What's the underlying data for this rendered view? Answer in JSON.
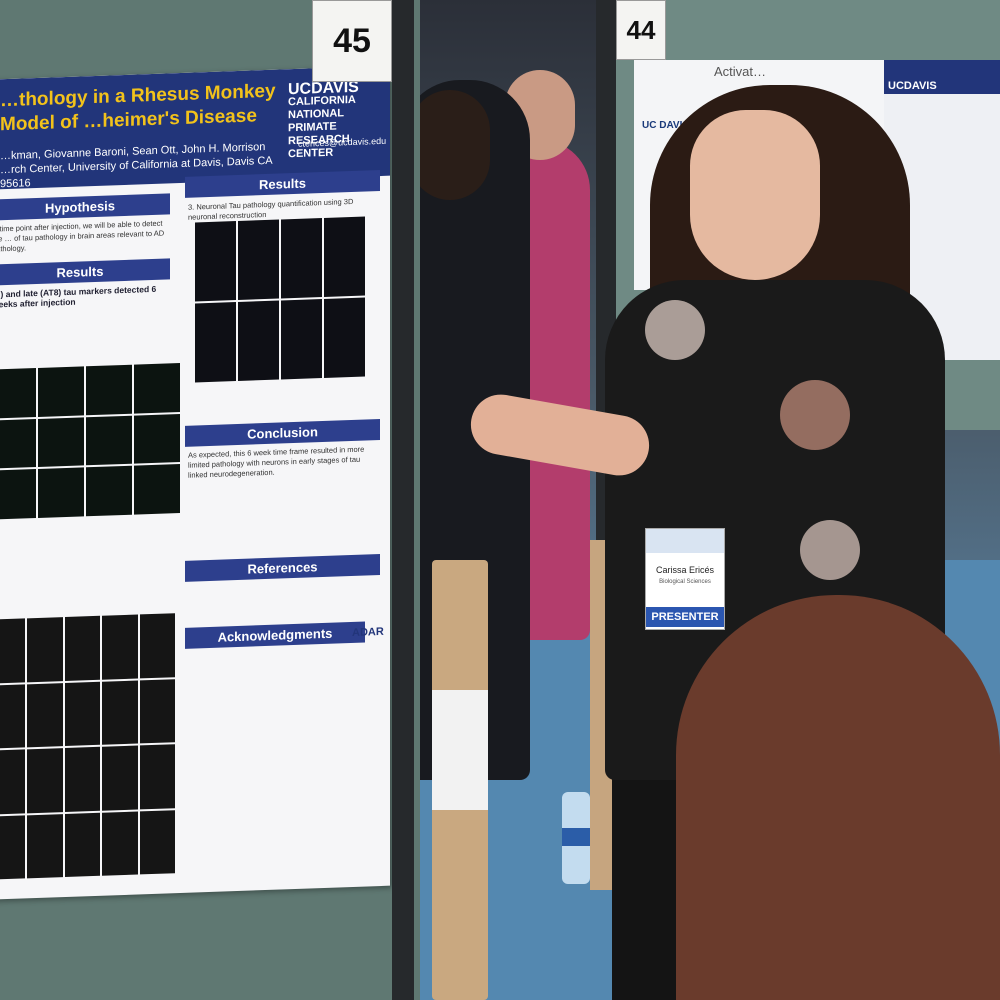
{
  "scene": {
    "description_tags": [
      "poster-session",
      "presenter",
      "scientific-poster"
    ],
    "colors": {
      "poster_navy": "#22357a",
      "poster_gold": "#f2c21b",
      "badge_blue": "#2b56b0"
    }
  },
  "board_numbers": {
    "left": "45",
    "right": "44"
  },
  "main_poster": {
    "title": "…thology in a Rhesus Monkey Model of …heimer's Disease",
    "logo_line1": "UCDAVIS",
    "logo_line2": "CALIFORNIA NATIONAL PRIMATE RESEARCH CENTER",
    "email": "cterices@ucdavis.edu",
    "authors": "…kman, Giovanne Baroni, Sean Ott, John H. Morrison",
    "affiliation": "…rch Center, University of California at Davis, Davis CA 95616",
    "sections": {
      "hypothesis": "Hypothesis",
      "results_left": "Results",
      "results_right": "Results",
      "conclusion": "Conclusion",
      "references": "References",
      "acknowledgements": "Acknowledgments"
    },
    "hypothesis_text": "…time point after injection, we will be able to detect the … of tau pathology in brain areas relevant to AD pathology.",
    "results_left_text": "…) and late (AT8) tau markers detected 6 weeks after injection",
    "results_right_text": "3. Neuronal Tau pathology quantification using 3D neuronal reconstruction",
    "conclusion_text": "As expected, this 6 week time frame resulted in more limited pathology with neurons in early stages of tau linked neurodegeneration.",
    "adar_logo": "ADAR"
  },
  "right_poster": {
    "logo": "UC DAVIS HEALTH",
    "title_fragment": "Activat…"
  },
  "far_right_poster": {
    "logo": "UCDAVIS"
  },
  "badge": {
    "name": "Carissa Ericés",
    "department": "Biological Sciences",
    "role": "PRESENTER"
  }
}
